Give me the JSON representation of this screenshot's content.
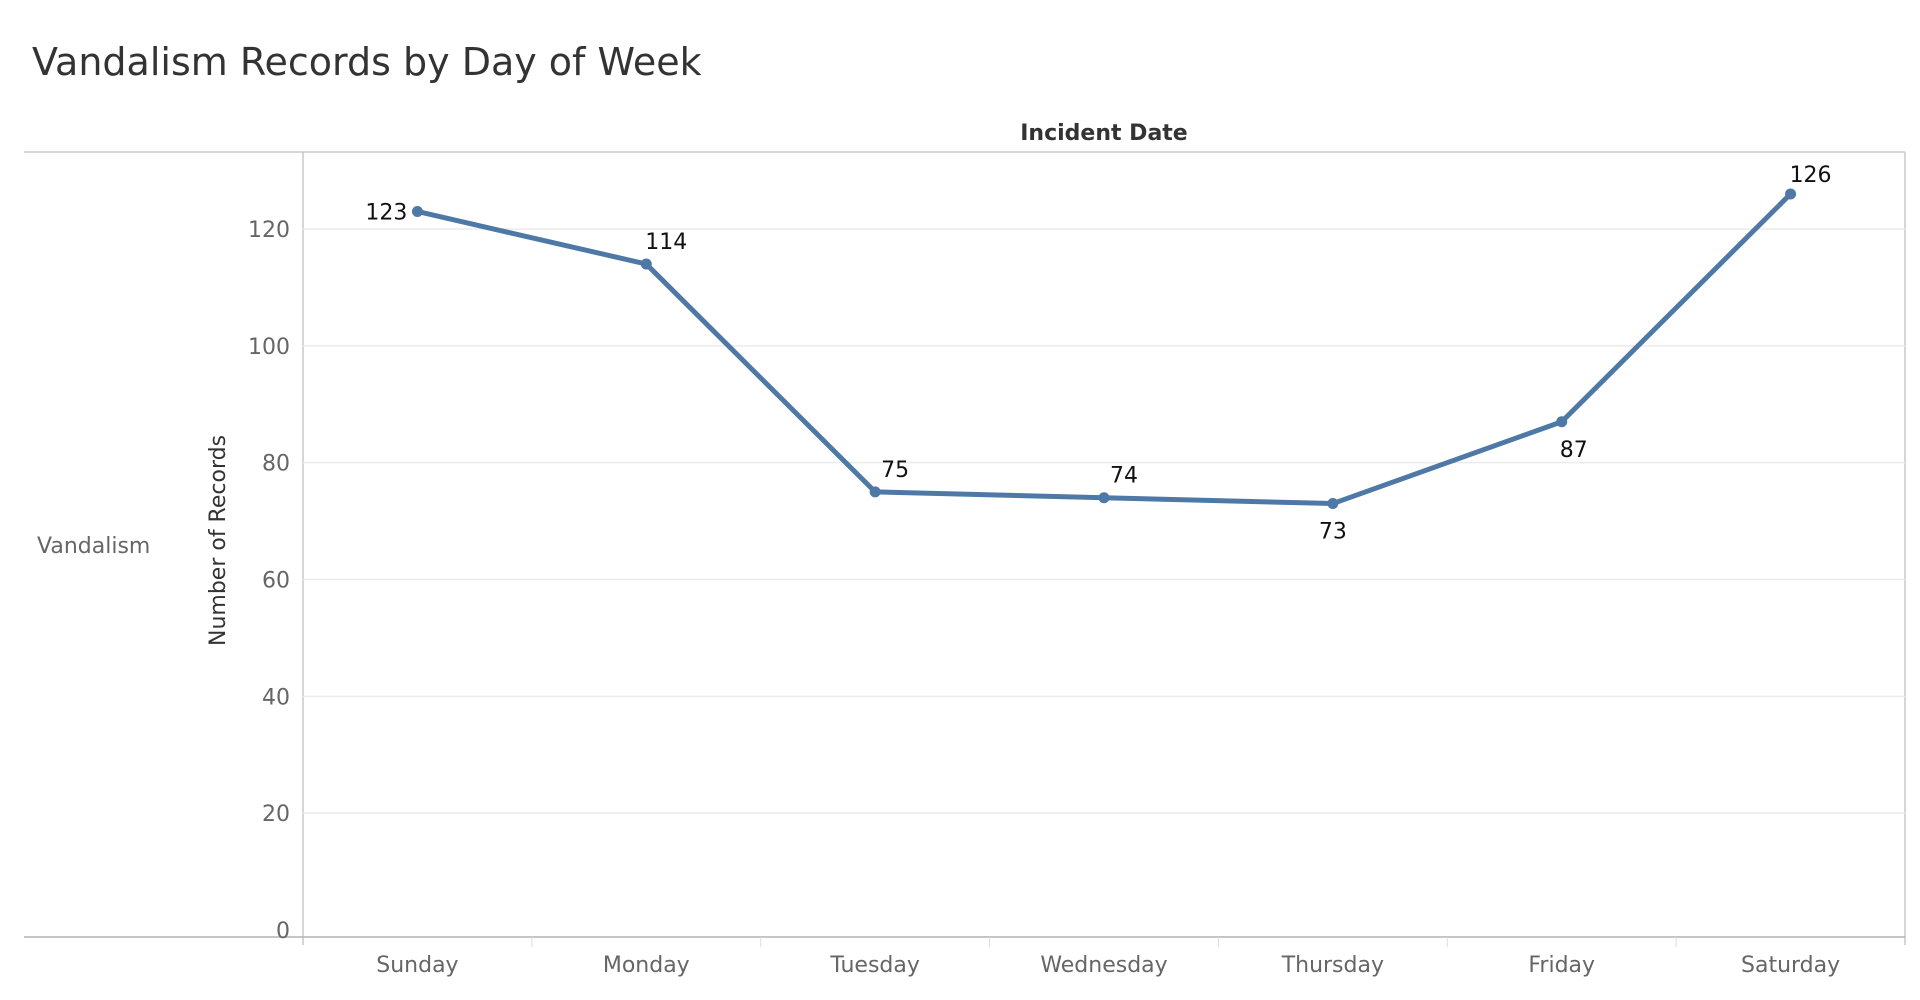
{
  "title": "Vandalism Records by Day of Week",
  "column_header": "Incident Date",
  "row_header": "Vandalism",
  "colors": {
    "line": "#4e79a7",
    "grid": "#ebebeb",
    "border": "#c8c8c8",
    "title": "#333333",
    "tick": "#666666"
  },
  "chart_data": {
    "type": "line",
    "categories": [
      "Sunday",
      "Monday",
      "Tuesday",
      "Wednesday",
      "Thursday",
      "Friday",
      "Saturday"
    ],
    "series": [
      {
        "values": [
          123,
          114,
          75,
          74,
          73,
          87,
          126
        ]
      }
    ],
    "title": "Vandalism Records by Day of Week",
    "xlabel": "Incident Date",
    "ylabel": "Number of Records",
    "ylim": [
      0,
      130
    ],
    "yticks": [
      0,
      20,
      40,
      60,
      80,
      100,
      120
    ],
    "grid": true,
    "data_labels": true,
    "markers": true
  }
}
